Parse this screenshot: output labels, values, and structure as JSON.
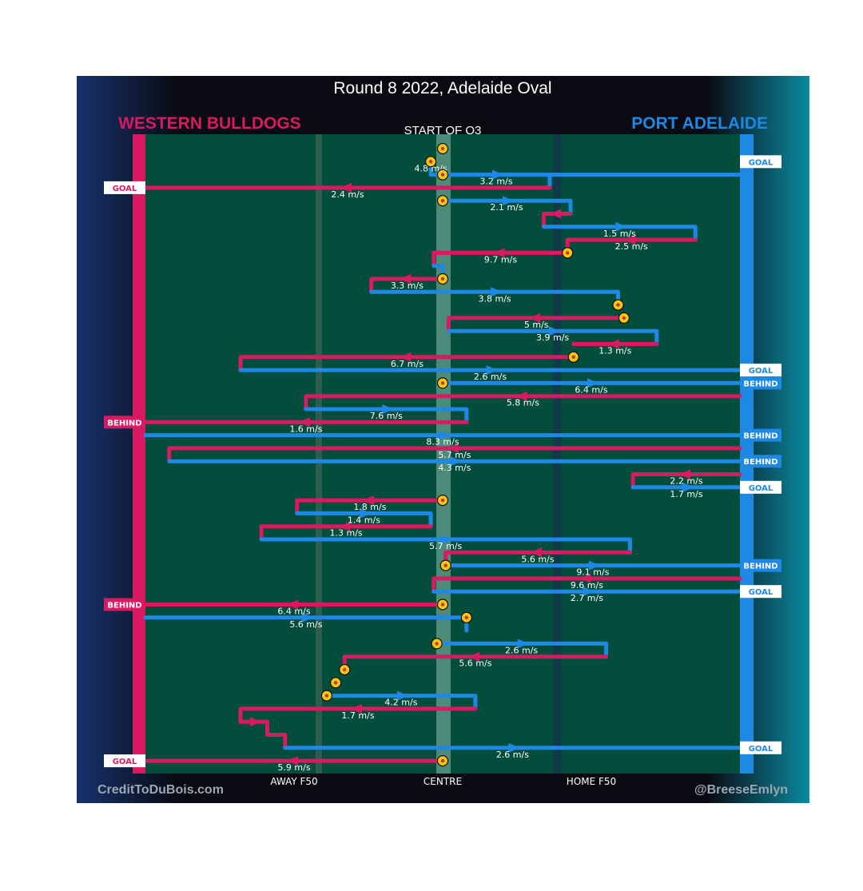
{
  "chart_data": {
    "type": "line",
    "title": "Round 8 2022, Adelaide Oval",
    "subtitle": "START OF Q3",
    "teams": {
      "away": {
        "name": "WESTERN BULLDOGS",
        "color": "#d81b60"
      },
      "home": {
        "name": "PORT ADELAIDE",
        "color": "#1e88e5"
      }
    },
    "colors": {
      "ground": "#024d3c",
      "home_f50_line": "#0e3a4a",
      "away_f50_line": "#2c5e4c",
      "centre_band": "#4d8a78",
      "label_text": "#ffffff",
      "ball_fill": "#f5c518",
      "ball_ring": "#c0392b"
    },
    "x_axis": {
      "labels": [
        "AWAY F50",
        "CENTRE",
        "HOME F50"
      ],
      "positions": [
        -0.5,
        0,
        0.5
      ],
      "range": [
        -1,
        1
      ]
    },
    "credits": {
      "left": "CreditToDuBois.com",
      "right": "@BreeseEmlyn"
    },
    "icons": [
      "football-icon"
    ],
    "chains": [
      {
        "team": "home",
        "row": 1,
        "path": [
          [
            -0.04,
            0
          ],
          [
            -0.04,
            1
          ],
          [
            1,
            1
          ]
        ],
        "speed": "4.8 m/s",
        "result": "GOAL"
      },
      {
        "team": "home",
        "row": 2,
        "path": [
          [
            0,
            0
          ],
          [
            0.36,
            0
          ],
          [
            0.36,
            1
          ]
        ],
        "speed": "3.2 m/s"
      },
      {
        "team": "away",
        "row": 3,
        "path": [
          [
            0.36,
            0
          ],
          [
            -1,
            0
          ]
        ],
        "speed": "2.4 m/s",
        "result": "GOAL"
      },
      {
        "team": "home",
        "row": 4,
        "path": [
          [
            0,
            0
          ],
          [
            0.43,
            0
          ],
          [
            0.43,
            1
          ]
        ],
        "speed": "2.1 m/s"
      },
      {
        "team": "away",
        "row": 5,
        "path": [
          [
            0.43,
            0
          ],
          [
            0.34,
            0
          ],
          [
            0.34,
            1
          ]
        ],
        "speed": ""
      },
      {
        "team": "home",
        "row": 6,
        "path": [
          [
            0.34,
            0
          ],
          [
            0.85,
            0
          ],
          [
            0.85,
            1
          ]
        ],
        "speed": "1.5 m/s"
      },
      {
        "team": "away",
        "row": 7,
        "path": [
          [
            0.85,
            0
          ],
          [
            0.42,
            0
          ],
          [
            0.42,
            1
          ]
        ],
        "speed": "2.5 m/s"
      },
      {
        "team": "away",
        "row": 8,
        "path": [
          [
            0.42,
            0
          ],
          [
            -0.03,
            0
          ],
          [
            -0.03,
            1
          ]
        ],
        "speed": "9.7 m/s"
      },
      {
        "team": "home",
        "row": 9,
        "path": [
          [
            -0.03,
            0
          ],
          [
            0,
            0
          ],
          [
            0,
            1
          ]
        ],
        "speed": ""
      },
      {
        "team": "away",
        "row": 10,
        "path": [
          [
            0,
            0
          ],
          [
            -0.24,
            0
          ],
          [
            -0.24,
            1
          ]
        ],
        "speed": "3.3 m/s"
      },
      {
        "team": "home",
        "row": 11,
        "path": [
          [
            -0.24,
            0
          ],
          [
            0.59,
            0
          ],
          [
            0.59,
            1
          ]
        ],
        "speed": "3.8 m/s"
      },
      {
        "team": "away",
        "row": 13,
        "path": [
          [
            0.61,
            0
          ],
          [
            0.02,
            0
          ],
          [
            0.02,
            1
          ]
        ],
        "speed": "5 m/s"
      },
      {
        "team": "home",
        "row": 14,
        "path": [
          [
            0.02,
            0
          ],
          [
            0.72,
            0
          ],
          [
            0.72,
            1
          ]
        ],
        "speed": "3.9 m/s"
      },
      {
        "team": "away",
        "row": 15,
        "path": [
          [
            0.72,
            0
          ],
          [
            0.44,
            0
          ]
        ],
        "speed": "1.3 m/s"
      },
      {
        "team": "away",
        "row": 16,
        "path": [
          [
            0.44,
            0
          ],
          [
            -0.68,
            0
          ],
          [
            -0.68,
            1
          ]
        ],
        "speed": "6.7 m/s"
      },
      {
        "team": "home",
        "row": 17,
        "path": [
          [
            -0.68,
            0
          ],
          [
            1,
            0
          ]
        ],
        "speed": "2.6 m/s",
        "result": "GOAL"
      },
      {
        "team": "home",
        "row": 18,
        "path": [
          [
            0,
            0
          ],
          [
            1,
            0
          ]
        ],
        "speed": "6.4 m/s",
        "result": "BEHIND"
      },
      {
        "team": "away",
        "row": 19,
        "path": [
          [
            1,
            0
          ],
          [
            -0.46,
            0
          ],
          [
            -0.46,
            1
          ]
        ],
        "speed": "5.8 m/s"
      },
      {
        "team": "home",
        "row": 20,
        "path": [
          [
            -0.46,
            0
          ],
          [
            0.08,
            0
          ],
          [
            0.08,
            1
          ]
        ],
        "speed": "7.6 m/s"
      },
      {
        "team": "away",
        "row": 21,
        "path": [
          [
            0.08,
            0
          ],
          [
            -1,
            0
          ]
        ],
        "speed": "1.6 m/s",
        "result": "BEHIND"
      },
      {
        "team": "home",
        "row": 22,
        "path": [
          [
            -1,
            0
          ],
          [
            1,
            0
          ]
        ],
        "speed": "8.3 m/s",
        "result": "BEHIND"
      },
      {
        "team": "away",
        "row": 23,
        "path": [
          [
            1,
            0
          ],
          [
            -0.92,
            0
          ],
          [
            -0.92,
            1
          ]
        ],
        "speed": "5.7 m/s"
      },
      {
        "team": "home",
        "row": 24,
        "path": [
          [
            -0.92,
            0
          ],
          [
            1,
            0
          ]
        ],
        "speed": "4.3 m/s",
        "result": "BEHIND"
      },
      {
        "team": "away",
        "row": 25,
        "path": [
          [
            1,
            0
          ],
          [
            0.64,
            0
          ],
          [
            0.64,
            1
          ]
        ],
        "speed": "2.2 m/s"
      },
      {
        "team": "home",
        "row": 26,
        "path": [
          [
            0.64,
            0
          ],
          [
            1,
            0
          ]
        ],
        "speed": "1.7 m/s",
        "result": "GOAL"
      },
      {
        "team": "away",
        "row": 27,
        "path": [
          [
            0,
            0
          ],
          [
            -0.49,
            0
          ],
          [
            -0.49,
            1
          ]
        ],
        "speed": "1.8 m/s"
      },
      {
        "team": "home",
        "row": 28,
        "path": [
          [
            -0.49,
            0
          ],
          [
            -0.04,
            0
          ],
          [
            -0.04,
            1
          ]
        ],
        "speed": "1.4 m/s"
      },
      {
        "team": "away",
        "row": 29,
        "path": [
          [
            -0.04,
            0
          ],
          [
            -0.61,
            0
          ],
          [
            -0.61,
            1
          ]
        ],
        "speed": "1.3 m/s"
      },
      {
        "team": "home",
        "row": 30,
        "path": [
          [
            -0.61,
            0
          ],
          [
            0.63,
            0
          ],
          [
            0.63,
            1
          ]
        ],
        "speed": "5.7 m/s"
      },
      {
        "team": "away",
        "row": 31,
        "path": [
          [
            0.63,
            0
          ],
          [
            0.01,
            0
          ],
          [
            0.01,
            1
          ]
        ],
        "speed": "5.6 m/s"
      },
      {
        "team": "home",
        "row": 32,
        "path": [
          [
            0.01,
            0
          ],
          [
            1,
            0
          ]
        ],
        "speed": "9.1 m/s",
        "result": "BEHIND"
      },
      {
        "team": "away",
        "row": 33,
        "path": [
          [
            1,
            0
          ],
          [
            -0.03,
            0
          ],
          [
            -0.03,
            1
          ]
        ],
        "speed": "9.6 m/s"
      },
      {
        "team": "home",
        "row": 34,
        "path": [
          [
            -0.03,
            0
          ],
          [
            1,
            0
          ]
        ],
        "speed": "2.7 m/s",
        "result": "GOAL"
      },
      {
        "team": "away",
        "row": 35,
        "path": [
          [
            0,
            0
          ],
          [
            -1,
            0
          ]
        ],
        "speed": "6.4 m/s",
        "result": "BEHIND"
      },
      {
        "team": "home",
        "row": 36,
        "path": [
          [
            -1,
            0
          ],
          [
            0.08,
            0
          ],
          [
            0.08,
            1
          ]
        ],
        "speed": "5.6 m/s"
      },
      {
        "team": "home",
        "row": 38,
        "path": [
          [
            -0.02,
            0
          ],
          [
            0.55,
            0
          ],
          [
            0.55,
            1
          ]
        ],
        "speed": "2.6 m/s"
      },
      {
        "team": "away",
        "row": 39,
        "path": [
          [
            0.55,
            0
          ],
          [
            -0.33,
            0
          ],
          [
            -0.33,
            1
          ]
        ],
        "speed": "5.6 m/s"
      },
      {
        "team": "home",
        "row": 42,
        "path": [
          [
            -0.39,
            0
          ],
          [
            0.11,
            0
          ],
          [
            0.11,
            1
          ]
        ],
        "speed": "4.2 m/s"
      },
      {
        "team": "away",
        "row": 43,
        "path": [
          [
            0.11,
            0
          ],
          [
            -0.68,
            0
          ],
          [
            -0.68,
            1
          ]
        ],
        "speed": "1.7 m/s"
      },
      {
        "team": "away",
        "row": 44,
        "path": [
          [
            -0.68,
            0
          ],
          [
            -0.59,
            0
          ],
          [
            -0.59,
            1
          ]
        ],
        "speed": ""
      },
      {
        "team": "away",
        "row": 45,
        "path": [
          [
            -0.59,
            0
          ],
          [
            -0.53,
            0
          ],
          [
            -0.53,
            1
          ]
        ],
        "speed": ""
      },
      {
        "team": "home",
        "row": 46,
        "path": [
          [
            -0.53,
            0
          ],
          [
            1,
            0
          ]
        ],
        "speed": "2.6 m/s",
        "result": "GOAL"
      },
      {
        "team": "away",
        "row": 47,
        "path": [
          [
            0,
            0
          ],
          [
            -1,
            0
          ]
        ],
        "speed": "5.9 m/s",
        "result": "GOAL"
      }
    ],
    "balls": [
      [
        0,
        0
      ],
      [
        -0.04,
        1
      ],
      [
        0,
        2
      ],
      [
        0,
        4
      ],
      [
        0.42,
        8
      ],
      [
        0,
        10
      ],
      [
        0.59,
        12
      ],
      [
        0.61,
        13
      ],
      [
        0.44,
        16
      ],
      [
        0,
        18
      ],
      [
        0,
        27
      ],
      [
        0.01,
        32
      ],
      [
        0,
        35
      ],
      [
        0.08,
        36
      ],
      [
        -0.02,
        38
      ],
      [
        -0.33,
        40
      ],
      [
        -0.36,
        41
      ],
      [
        -0.39,
        42
      ],
      [
        0,
        47
      ]
    ]
  }
}
